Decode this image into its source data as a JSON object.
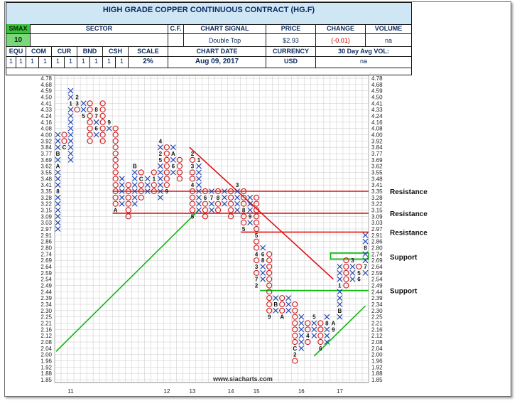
{
  "title": "HIGH GRADE COPPER CONTINUOUS CONTRACT (HG.F)",
  "header": {
    "smax_label": "SMAX",
    "smax_value": "10",
    "sector_label": "SECTOR",
    "sector_value": "",
    "cf_label": "C.F.",
    "chart_signal_label": "CHART SIGNAL",
    "chart_signal_value": "Double Top",
    "price_label": "PRICE",
    "price_value": "$2.93",
    "change_label": "CHANGE",
    "change_value": "(-0.01)",
    "volume_label": "VOLUME",
    "volume_value": "na",
    "equ_label": "EQU",
    "com_label": "COM",
    "cur_label": "CUR",
    "bnd_label": "BND",
    "csh_label": "CSH",
    "scale_label": "SCALE",
    "equ_vals": [
      "1",
      "1"
    ],
    "com_vals": [
      "1",
      "1"
    ],
    "cur_vals": [
      "1",
      "1"
    ],
    "bnd_vals": [
      "1",
      "1"
    ],
    "csh_vals": [
      "1",
      "1"
    ],
    "scale_value": "2%",
    "chart_date_label": "CHART DATE",
    "chart_date_value": "Aug 09, 2017",
    "currency_label": "CURRENCY",
    "currency_value": "USD",
    "avg_vol_label": "30 Day Avg VOL:",
    "avg_vol_value": "na"
  },
  "watermark": "www.siacharts.com",
  "chart_data": {
    "type": "point-and-figure",
    "box_scale_pct": 2,
    "y_levels": [
      "4.78",
      "4.68",
      "4.59",
      "4.50",
      "4.41",
      "4.33",
      "4.24",
      "4.16",
      "4.08",
      "4.00",
      "3.92",
      "3.84",
      "3.77",
      "3.69",
      "3.62",
      "3.55",
      "3.48",
      "3.41",
      "3.35",
      "3.28",
      "3.22",
      "3.15",
      "3.09",
      "3.03",
      "2.97",
      "2.91",
      "2.86",
      "2.80",
      "2.74",
      "2.69",
      "2.64",
      "2.59",
      "2.54",
      "2.49",
      "2.44",
      "2.39",
      "2.34",
      "2.30",
      "2.25",
      "2.21",
      "2.16",
      "2.12",
      "2.08",
      "2.04",
      "2.00",
      "1.96",
      "1.92",
      "1.88",
      "1.85"
    ],
    "x_year_labels": [
      {
        "label": "11",
        "col": 2
      },
      {
        "label": "12",
        "col": 17
      },
      {
        "label": "13",
        "col": 21
      },
      {
        "label": "14",
        "col": 27
      },
      {
        "label": "15",
        "col": 31
      },
      {
        "label": "16",
        "col": 38
      },
      {
        "label": "17",
        "col": 44
      }
    ],
    "columns": [
      {
        "col": 0,
        "type": "X",
        "from": "2.97",
        "to": "4.00",
        "marks": [
          {
            "level": "3.35",
            "m": "8"
          },
          {
            "level": "3.62",
            "m": "A"
          },
          {
            "level": "3.77",
            "m": "B"
          }
        ]
      },
      {
        "col": 1,
        "type": "O",
        "from": "3.84",
        "to": "4.00",
        "marks": [
          {
            "level": "3.84",
            "m": "C"
          }
        ]
      },
      {
        "col": 2,
        "type": "X",
        "from": "3.69",
        "to": "4.59",
        "marks": [
          {
            "level": "4.41",
            "m": "1"
          }
        ]
      },
      {
        "col": 3,
        "type": "O",
        "from": "4.33",
        "to": "4.50",
        "marks": [
          {
            "level": "4.50",
            "m": "2"
          },
          {
            "level": "4.41",
            "m": "3"
          }
        ]
      },
      {
        "col": 4,
        "type": "X",
        "from": "4.24",
        "to": "4.41",
        "marks": [
          {
            "level": "4.24",
            "m": "5"
          }
        ]
      },
      {
        "col": 5,
        "type": "O",
        "from": "3.92",
        "to": "4.41",
        "marks": []
      },
      {
        "col": 6,
        "type": "X",
        "from": "4.00",
        "to": "4.33",
        "marks": [
          {
            "level": "4.08",
            "m": "6"
          },
          {
            "level": "4.24",
            "m": "7"
          },
          {
            "level": "4.33",
            "m": "8"
          }
        ]
      },
      {
        "col": 7,
        "type": "O",
        "from": "3.92",
        "to": "4.41",
        "marks": []
      },
      {
        "col": 8,
        "type": "X",
        "from": "4.08",
        "to": "4.16",
        "marks": [
          {
            "level": "4.16",
            "m": "9"
          }
        ]
      },
      {
        "col": 9,
        "type": "O",
        "from": "3.15",
        "to": "4.08",
        "marks": [
          {
            "level": "3.15",
            "m": "A"
          }
        ]
      },
      {
        "col": 10,
        "type": "X",
        "from": "3.22",
        "to": "3.48",
        "marks": []
      },
      {
        "col": 11,
        "type": "O",
        "from": "3.09",
        "to": "3.41",
        "marks": []
      },
      {
        "col": 12,
        "type": "X",
        "from": "3.22",
        "to": "3.62",
        "marks": [
          {
            "level": "3.62",
            "m": "B"
          }
        ]
      },
      {
        "col": 13,
        "type": "O",
        "from": "3.28",
        "to": "3.55",
        "marks": [
          {
            "level": "3.48",
            "m": "C"
          }
        ]
      },
      {
        "col": 14,
        "type": "X",
        "from": "3.35",
        "to": "3.48",
        "marks": []
      },
      {
        "col": 15,
        "type": "O",
        "from": "3.35",
        "to": "3.55",
        "marks": [
          {
            "level": "3.48",
            "m": "1"
          }
        ]
      },
      {
        "col": 16,
        "type": "X",
        "from": "3.28",
        "to": "3.92",
        "marks": [
          {
            "level": "3.92",
            "m": "4"
          },
          {
            "level": "3.77",
            "m": "2"
          },
          {
            "level": "3.69",
            "m": "5"
          }
        ]
      },
      {
        "col": 17,
        "type": "O",
        "from": "3.35",
        "to": "3.84",
        "marks": [
          {
            "level": "3.35",
            "m": "9"
          }
        ]
      },
      {
        "col": 18,
        "type": "X",
        "from": "3.55",
        "to": "3.84",
        "marks": [
          {
            "level": "3.77",
            "m": "A"
          },
          {
            "level": "3.62",
            "m": "6"
          }
        ]
      },
      {
        "col": 19,
        "type": "O",
        "from": "3.48",
        "to": "3.69",
        "marks": []
      },
      {
        "col": 21,
        "type": "O",
        "from": "3.09",
        "to": "3.77",
        "marks": [
          {
            "level": "3.77",
            "m": "2"
          },
          {
            "level": "3.62",
            "m": "3"
          },
          {
            "level": "3.41",
            "m": "4"
          },
          {
            "level": "3.09",
            "m": "5"
          }
        ]
      },
      {
        "col": 22,
        "type": "X",
        "from": "3.15",
        "to": "3.69",
        "marks": [
          {
            "level": "3.69",
            "m": "1"
          }
        ]
      },
      {
        "col": 23,
        "type": "O",
        "from": "3.09",
        "to": "3.35",
        "marks": [
          {
            "level": "3.28",
            "m": "6"
          }
        ]
      },
      {
        "col": 24,
        "type": "X",
        "from": "3.15",
        "to": "3.35",
        "marks": [
          {
            "level": "3.28",
            "m": "7"
          }
        ]
      },
      {
        "col": 25,
        "type": "O",
        "from": "3.15",
        "to": "3.35",
        "marks": [
          {
            "level": "3.28",
            "m": "8"
          }
        ]
      },
      {
        "col": 26,
        "type": "X",
        "from": "3.22",
        "to": "3.35",
        "marks": []
      },
      {
        "col": 27,
        "type": "O",
        "from": "3.09",
        "to": "3.35",
        "marks": []
      },
      {
        "col": 28,
        "type": "X",
        "from": "3.15",
        "to": "3.41",
        "marks": [
          {
            "level": "3.41",
            "m": "3"
          }
        ]
      },
      {
        "col": 29,
        "type": "O",
        "from": "2.97",
        "to": "3.35",
        "marks": [
          {
            "level": "3.15",
            "m": "8"
          },
          {
            "level": "2.97",
            "m": "5"
          }
        ]
      },
      {
        "col": 30,
        "type": "X",
        "from": "3.03",
        "to": "3.28",
        "marks": [
          {
            "level": "3.09",
            "m": "9"
          }
        ]
      },
      {
        "col": 31,
        "type": "O",
        "from": "2.49",
        "to": "3.28",
        "marks": [
          {
            "level": "2.91",
            "m": "5"
          },
          {
            "level": "2.74",
            "m": "4"
          },
          {
            "level": "2.64",
            "m": "3"
          },
          {
            "level": "2.54",
            "m": "7"
          },
          {
            "level": "2.49",
            "m": "2"
          }
        ]
      },
      {
        "col": 32,
        "type": "X",
        "from": "2.54",
        "to": "2.80",
        "marks": [
          {
            "level": "2.74",
            "m": "6"
          },
          {
            "level": "2.69",
            "m": "8"
          }
        ]
      },
      {
        "col": 33,
        "type": "O",
        "from": "2.25",
        "to": "2.74",
        "marks": [
          {
            "level": "2.25",
            "m": "9"
          }
        ]
      },
      {
        "col": 34,
        "type": "X",
        "from": "2.30",
        "to": "2.39",
        "marks": [
          {
            "level": "2.34",
            "m": "B"
          }
        ]
      },
      {
        "col": 35,
        "type": "O",
        "from": "2.25",
        "to": "2.39",
        "marks": [
          {
            "level": "2.25",
            "m": "A"
          }
        ]
      },
      {
        "col": 36,
        "type": "X",
        "from": "2.30",
        "to": "2.39",
        "marks": []
      },
      {
        "col": 37,
        "type": "O",
        "from": "1.96",
        "to": "2.34",
        "marks": [
          {
            "level": "2.04",
            "m": "C"
          },
          {
            "level": "2.00",
            "m": "2"
          }
        ]
      },
      {
        "col": 38,
        "type": "X",
        "from": "2.04",
        "to": "2.25",
        "marks": []
      },
      {
        "col": 39,
        "type": "O",
        "from": "2.08",
        "to": "2.21",
        "marks": [
          {
            "level": "2.12",
            "m": "4"
          }
        ]
      },
      {
        "col": 40,
        "type": "X",
        "from": "2.12",
        "to": "2.25",
        "marks": [
          {
            "level": "2.25",
            "m": "5"
          }
        ]
      },
      {
        "col": 41,
        "type": "O",
        "from": "2.04",
        "to": "2.21",
        "marks": [
          {
            "level": "2.04",
            "m": "6"
          }
        ]
      },
      {
        "col": 42,
        "type": "X",
        "from": "2.08",
        "to": "2.25",
        "marks": [
          {
            "level": "2.21",
            "m": "8"
          }
        ]
      },
      {
        "col": 43,
        "type": "O",
        "from": "2.16",
        "to": "2.21",
        "marks": [
          {
            "level": "2.16",
            "m": "9"
          },
          {
            "level": "2.21",
            "m": "A"
          }
        ]
      },
      {
        "col": 44,
        "type": "X",
        "from": "2.25",
        "to": "2.64",
        "marks": [
          {
            "level": "2.30",
            "m": "B"
          },
          {
            "level": "2.49",
            "m": "1"
          }
        ]
      },
      {
        "col": 45,
        "type": "O",
        "from": "2.49",
        "to": "2.69",
        "marks": []
      },
      {
        "col": 46,
        "type": "X",
        "from": "2.54",
        "to": "2.69",
        "marks": [
          {
            "level": "2.69",
            "m": "3"
          }
        ]
      },
      {
        "col": 47,
        "type": "O",
        "from": "2.54",
        "to": "2.64",
        "marks": [
          {
            "level": "2.59",
            "m": "5"
          },
          {
            "level": "2.54",
            "m": "6"
          }
        ]
      },
      {
        "col": 48,
        "type": "X",
        "from": "2.59",
        "to": "2.91",
        "marks": [
          {
            "level": "2.80",
            "m": "8"
          },
          {
            "level": "2.64",
            "m": "7"
          }
        ]
      }
    ],
    "annotations": [
      {
        "label": "Resistance",
        "level": "3.35"
      },
      {
        "label": "Resistance",
        "level": "3.12"
      },
      {
        "label": "Resistance",
        "level": "2.94"
      },
      {
        "label": "Support",
        "level": "2.72"
      },
      {
        "label": "Support",
        "level": "2.45"
      }
    ]
  },
  "colors": {
    "x_mark": "#1a3fb0",
    "o_mark": "#d01a1a",
    "resistance": "#e01010",
    "support": "#10b810",
    "grid": "#c8c8c8",
    "header_bg": "#cfe6f5"
  }
}
